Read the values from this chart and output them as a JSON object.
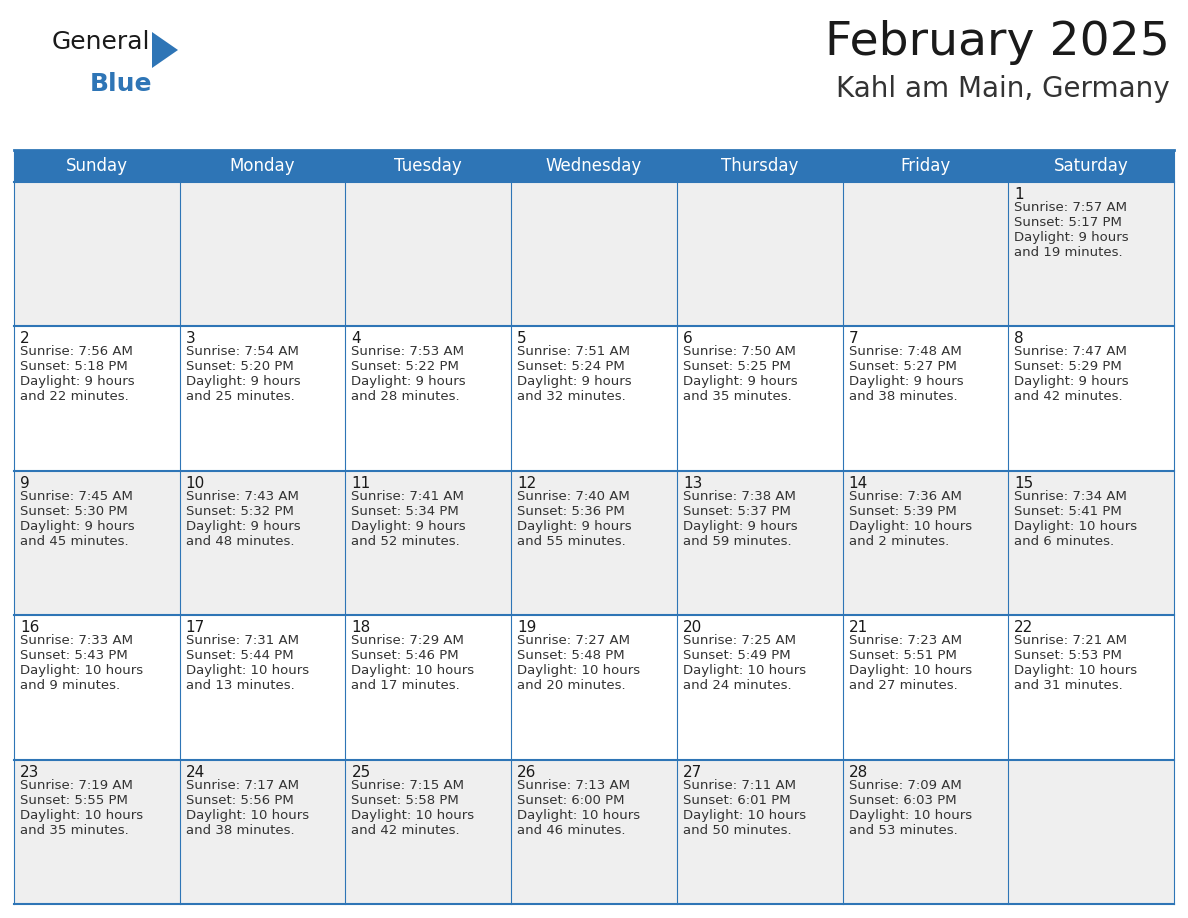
{
  "title": "February 2025",
  "subtitle": "Kahl am Main, Germany",
  "header_color": "#2E75B6",
  "header_text_color": "#FFFFFF",
  "cell_bg_odd": "#EFEFEF",
  "cell_bg_even": "#FFFFFF",
  "border_color": "#2E75B6",
  "day_names": [
    "Sunday",
    "Monday",
    "Tuesday",
    "Wednesday",
    "Thursday",
    "Friday",
    "Saturday"
  ],
  "title_color": "#1a1a1a",
  "subtitle_color": "#333333",
  "day_num_color": "#1a1a1a",
  "info_color": "#333333",
  "logo_general_color": "#1a1a1a",
  "logo_blue_color": "#2E75B6",
  "days": [
    {
      "date": 1,
      "col": 6,
      "row": 0,
      "sunrise": "7:57 AM",
      "sunset": "5:17 PM",
      "daylight": "9 hours and 19 minutes"
    },
    {
      "date": 2,
      "col": 0,
      "row": 1,
      "sunrise": "7:56 AM",
      "sunset": "5:18 PM",
      "daylight": "9 hours and 22 minutes"
    },
    {
      "date": 3,
      "col": 1,
      "row": 1,
      "sunrise": "7:54 AM",
      "sunset": "5:20 PM",
      "daylight": "9 hours and 25 minutes"
    },
    {
      "date": 4,
      "col": 2,
      "row": 1,
      "sunrise": "7:53 AM",
      "sunset": "5:22 PM",
      "daylight": "9 hours and 28 minutes"
    },
    {
      "date": 5,
      "col": 3,
      "row": 1,
      "sunrise": "7:51 AM",
      "sunset": "5:24 PM",
      "daylight": "9 hours and 32 minutes"
    },
    {
      "date": 6,
      "col": 4,
      "row": 1,
      "sunrise": "7:50 AM",
      "sunset": "5:25 PM",
      "daylight": "9 hours and 35 minutes"
    },
    {
      "date": 7,
      "col": 5,
      "row": 1,
      "sunrise": "7:48 AM",
      "sunset": "5:27 PM",
      "daylight": "9 hours and 38 minutes"
    },
    {
      "date": 8,
      "col": 6,
      "row": 1,
      "sunrise": "7:47 AM",
      "sunset": "5:29 PM",
      "daylight": "9 hours and 42 minutes"
    },
    {
      "date": 9,
      "col": 0,
      "row": 2,
      "sunrise": "7:45 AM",
      "sunset": "5:30 PM",
      "daylight": "9 hours and 45 minutes"
    },
    {
      "date": 10,
      "col": 1,
      "row": 2,
      "sunrise": "7:43 AM",
      "sunset": "5:32 PM",
      "daylight": "9 hours and 48 minutes"
    },
    {
      "date": 11,
      "col": 2,
      "row": 2,
      "sunrise": "7:41 AM",
      "sunset": "5:34 PM",
      "daylight": "9 hours and 52 minutes"
    },
    {
      "date": 12,
      "col": 3,
      "row": 2,
      "sunrise": "7:40 AM",
      "sunset": "5:36 PM",
      "daylight": "9 hours and 55 minutes"
    },
    {
      "date": 13,
      "col": 4,
      "row": 2,
      "sunrise": "7:38 AM",
      "sunset": "5:37 PM",
      "daylight": "9 hours and 59 minutes"
    },
    {
      "date": 14,
      "col": 5,
      "row": 2,
      "sunrise": "7:36 AM",
      "sunset": "5:39 PM",
      "daylight": "10 hours and 2 minutes"
    },
    {
      "date": 15,
      "col": 6,
      "row": 2,
      "sunrise": "7:34 AM",
      "sunset": "5:41 PM",
      "daylight": "10 hours and 6 minutes"
    },
    {
      "date": 16,
      "col": 0,
      "row": 3,
      "sunrise": "7:33 AM",
      "sunset": "5:43 PM",
      "daylight": "10 hours and 9 minutes"
    },
    {
      "date": 17,
      "col": 1,
      "row": 3,
      "sunrise": "7:31 AM",
      "sunset": "5:44 PM",
      "daylight": "10 hours and 13 minutes"
    },
    {
      "date": 18,
      "col": 2,
      "row": 3,
      "sunrise": "7:29 AM",
      "sunset": "5:46 PM",
      "daylight": "10 hours and 17 minutes"
    },
    {
      "date": 19,
      "col": 3,
      "row": 3,
      "sunrise": "7:27 AM",
      "sunset": "5:48 PM",
      "daylight": "10 hours and 20 minutes"
    },
    {
      "date": 20,
      "col": 4,
      "row": 3,
      "sunrise": "7:25 AM",
      "sunset": "5:49 PM",
      "daylight": "10 hours and 24 minutes"
    },
    {
      "date": 21,
      "col": 5,
      "row": 3,
      "sunrise": "7:23 AM",
      "sunset": "5:51 PM",
      "daylight": "10 hours and 27 minutes"
    },
    {
      "date": 22,
      "col": 6,
      "row": 3,
      "sunrise": "7:21 AM",
      "sunset": "5:53 PM",
      "daylight": "10 hours and 31 minutes"
    },
    {
      "date": 23,
      "col": 0,
      "row": 4,
      "sunrise": "7:19 AM",
      "sunset": "5:55 PM",
      "daylight": "10 hours and 35 minutes"
    },
    {
      "date": 24,
      "col": 1,
      "row": 4,
      "sunrise": "7:17 AM",
      "sunset": "5:56 PM",
      "daylight": "10 hours and 38 minutes"
    },
    {
      "date": 25,
      "col": 2,
      "row": 4,
      "sunrise": "7:15 AM",
      "sunset": "5:58 PM",
      "daylight": "10 hours and 42 minutes"
    },
    {
      "date": 26,
      "col": 3,
      "row": 4,
      "sunrise": "7:13 AM",
      "sunset": "6:00 PM",
      "daylight": "10 hours and 46 minutes"
    },
    {
      "date": 27,
      "col": 4,
      "row": 4,
      "sunrise": "7:11 AM",
      "sunset": "6:01 PM",
      "daylight": "10 hours and 50 minutes"
    },
    {
      "date": 28,
      "col": 5,
      "row": 4,
      "sunrise": "7:09 AM",
      "sunset": "6:03 PM",
      "daylight": "10 hours and 53 minutes"
    }
  ]
}
